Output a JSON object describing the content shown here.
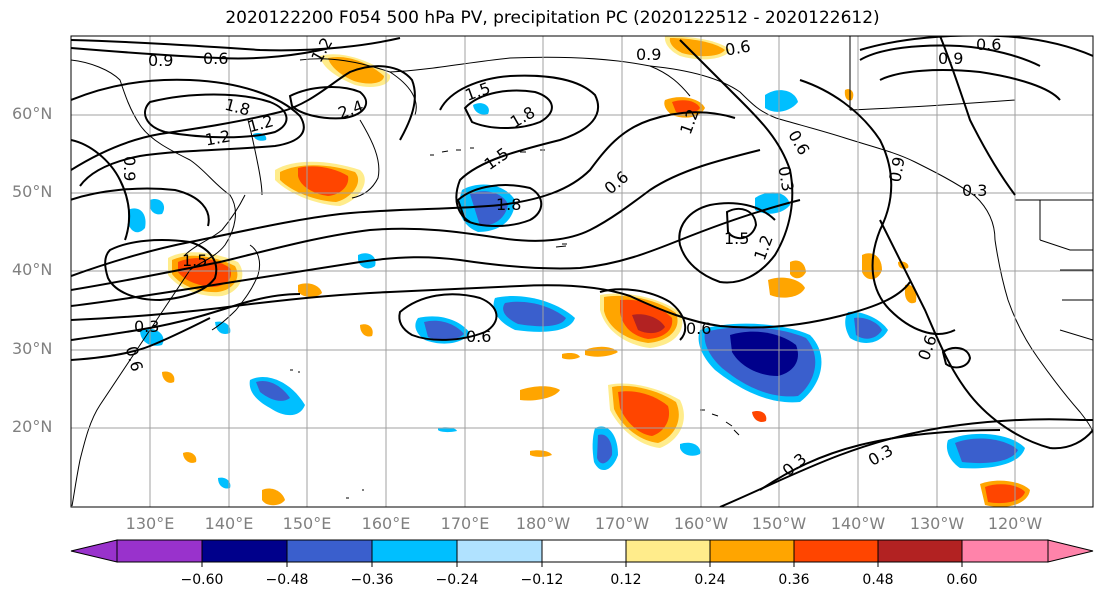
{
  "title": "2020122200 F054 500 hPa PV, precipitation PC (2020122512 - 2020122612)",
  "latitude_labels": [
    "60°N",
    "50°N",
    "40°N",
    "30°N",
    "20°N"
  ],
  "longitude_labels": [
    "130°E",
    "140°E",
    "150°E",
    "160°E",
    "170°E",
    "180°W",
    "170°W",
    "160°W",
    "150°W",
    "140°W",
    "130°W",
    "120°W"
  ],
  "contour_labels": [
    "0.9",
    "0.6",
    "1.2",
    "1.8",
    "2.4",
    "1.5",
    "1.8",
    "1.2",
    "0.9",
    "1.2",
    "1.5",
    "1.8",
    "0.6",
    "0.9",
    "0.6",
    "1.2",
    "0.6",
    "0.3",
    "1.5",
    "1.2",
    "0.6",
    "0.9",
    "0.3",
    "0.6",
    "0.3",
    "0.6",
    "0.6",
    "0.3",
    "0.3",
    "0.9",
    "0.6",
    "1.5"
  ],
  "colorbar": {
    "colors": [
      "#9932cc",
      "#00008b",
      "#3a5fcd",
      "#00bfff",
      "#b0e2ff",
      "#ffffff",
      "#ffec8b",
      "#ffa500",
      "#ff4500",
      "#b22222",
      "#ff83aa"
    ],
    "tick_labels": [
      "−0.60",
      "−0.48",
      "−0.36",
      "−0.24",
      "−0.12",
      "0.12",
      "0.24",
      "0.36",
      "0.48",
      "0.60"
    ]
  },
  "colors": {
    "grid": "#a0a0a0",
    "coastline": "#000000",
    "axis_label": "#808080"
  }
}
